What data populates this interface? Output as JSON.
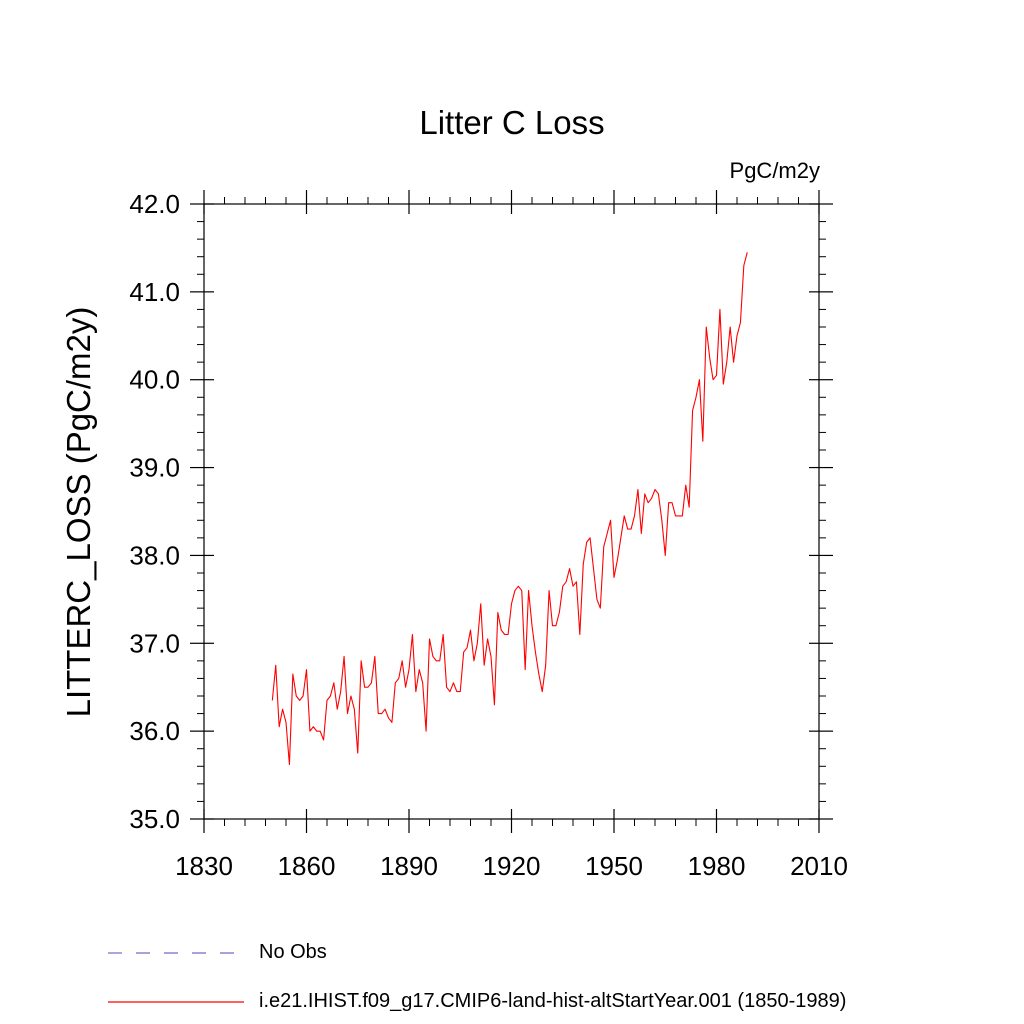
{
  "chart_data": {
    "type": "line",
    "title": "Litter C Loss",
    "units_label": "PgC/m2y",
    "ylabel": "LITTERC_LOSS  (PgC/m2y)",
    "xlabel": "",
    "xlim": [
      1830,
      2010
    ],
    "ylim": [
      35.0,
      42.0
    ],
    "x_ticks": [
      1830,
      1860,
      1890,
      1920,
      1950,
      1980,
      2010
    ],
    "x_tick_labels": [
      "1830",
      "1860",
      "1890",
      "1920",
      "1950",
      "1980",
      "2010"
    ],
    "y_ticks": [
      35,
      36,
      37,
      38,
      39,
      40,
      41,
      42
    ],
    "y_tick_labels": [
      "35.0",
      "36.0",
      "37.0",
      "38.0",
      "39.0",
      "40.0",
      "41.0",
      "42.0"
    ],
    "grid": false,
    "legend_position": "bottom-left",
    "series": [
      {
        "name": "No Obs",
        "color": "#7b68c8",
        "dash": true,
        "x": [],
        "y": []
      },
      {
        "name": "i.e21.IHIST.f09_g17.CMIP6-land-hist-altStartYear.001 (1850-1989)",
        "color": "#ff0000",
        "dash": false,
        "x": [
          1850,
          1851,
          1852,
          1853,
          1854,
          1855,
          1856,
          1857,
          1858,
          1859,
          1860,
          1861,
          1862,
          1863,
          1864,
          1865,
          1866,
          1867,
          1868,
          1869,
          1870,
          1871,
          1872,
          1873,
          1874,
          1875,
          1876,
          1877,
          1878,
          1879,
          1880,
          1881,
          1882,
          1883,
          1884,
          1885,
          1886,
          1887,
          1888,
          1889,
          1890,
          1891,
          1892,
          1893,
          1894,
          1895,
          1896,
          1897,
          1898,
          1899,
          1900,
          1901,
          1902,
          1903,
          1904,
          1905,
          1906,
          1907,
          1908,
          1909,
          1910,
          1911,
          1912,
          1913,
          1914,
          1915,
          1916,
          1917,
          1918,
          1919,
          1920,
          1921,
          1922,
          1923,
          1924,
          1925,
          1926,
          1927,
          1928,
          1929,
          1930,
          1931,
          1932,
          1933,
          1934,
          1935,
          1936,
          1937,
          1938,
          1939,
          1940,
          1941,
          1942,
          1943,
          1944,
          1945,
          1946,
          1947,
          1948,
          1949,
          1950,
          1951,
          1952,
          1953,
          1954,
          1955,
          1956,
          1957,
          1958,
          1959,
          1960,
          1961,
          1962,
          1963,
          1964,
          1965,
          1966,
          1967,
          1968,
          1969,
          1970,
          1971,
          1972,
          1973,
          1974,
          1975,
          1976,
          1977,
          1978,
          1979,
          1980,
          1981,
          1982,
          1983,
          1984,
          1985,
          1986,
          1987,
          1988,
          1989
        ],
        "y": [
          36.35,
          36.75,
          36.05,
          36.25,
          36.1,
          35.62,
          36.65,
          36.4,
          36.35,
          36.4,
          36.7,
          36.0,
          36.05,
          36.0,
          36.0,
          35.9,
          36.35,
          36.4,
          36.55,
          36.25,
          36.45,
          36.85,
          36.2,
          36.4,
          36.25,
          35.75,
          36.8,
          36.5,
          36.5,
          36.55,
          36.85,
          36.2,
          36.2,
          36.25,
          36.15,
          36.1,
          36.55,
          36.6,
          36.8,
          36.5,
          36.7,
          37.1,
          36.45,
          36.7,
          36.55,
          36.0,
          37.05,
          36.85,
          36.8,
          36.8,
          37.1,
          36.5,
          36.45,
          36.55,
          36.45,
          36.45,
          36.9,
          36.95,
          37.15,
          36.8,
          37.0,
          37.45,
          36.75,
          37.05,
          36.85,
          36.3,
          37.35,
          37.15,
          37.1,
          37.1,
          37.45,
          37.6,
          37.65,
          37.6,
          36.7,
          37.6,
          37.2,
          36.9,
          36.65,
          36.45,
          36.75,
          37.6,
          37.2,
          37.2,
          37.35,
          37.65,
          37.7,
          37.85,
          37.65,
          37.7,
          37.1,
          37.9,
          38.15,
          38.2,
          37.85,
          37.5,
          37.4,
          38.1,
          38.25,
          38.4,
          37.75,
          37.95,
          38.2,
          38.45,
          38.3,
          38.3,
          38.45,
          38.75,
          38.25,
          38.7,
          38.6,
          38.65,
          38.75,
          38.7,
          38.4,
          38.0,
          38.6,
          38.6,
          38.45,
          38.45,
          38.45,
          38.8,
          38.55,
          39.65,
          39.8,
          40.0,
          39.3,
          40.6,
          40.25,
          40.0,
          40.05,
          40.8,
          39.95,
          40.2,
          40.6,
          40.2,
          40.5,
          40.65,
          41.3,
          41.45
        ]
      }
    ]
  }
}
